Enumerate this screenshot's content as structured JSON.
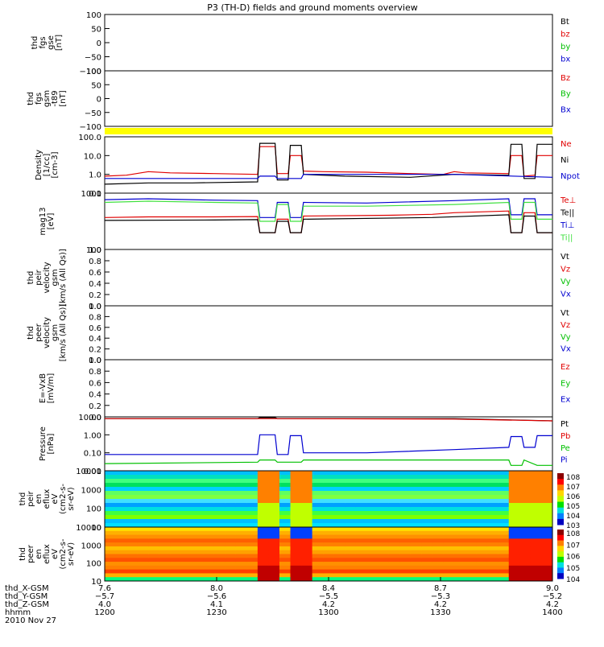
{
  "title": "P3 (TH-D) fields and ground moments overview",
  "colors": {
    "black": "#000000",
    "red": "#e00000",
    "green": "#00c000",
    "blue": "#0000d0",
    "yellow": "#ffff00",
    "lightgreen": "#40e040"
  },
  "panels": [
    {
      "id": "fgs-gse",
      "ylabel_lines": [
        "thd",
        "fgs",
        "gse",
        "[nT]"
      ],
      "yticks": [
        "100",
        "50",
        "0",
        "−50",
        "−100"
      ],
      "legend": [
        {
          "label": "Bt",
          "color": "black"
        },
        {
          "label": "bz",
          "color": "red"
        },
        {
          "label": "by",
          "color": "green"
        },
        {
          "label": "bx",
          "color": "blue"
        }
      ]
    },
    {
      "id": "fgs-gsm",
      "ylabel_lines": [
        "thd",
        "fgs",
        "gsm",
        "-t89",
        "[nT]"
      ],
      "yticks": [
        "100",
        "50",
        "0",
        "−50",
        "−100"
      ],
      "legend": [
        {
          "label": "Bz",
          "color": "red"
        },
        {
          "label": "By",
          "color": "green"
        },
        {
          "label": "Bx",
          "color": "blue"
        }
      ]
    },
    {
      "id": "density",
      "ylabel_lines": [
        "Density",
        "[1/cc]",
        "[cm-3]"
      ],
      "yticks": [
        "100.0",
        "10.0",
        "1.0",
        "0.1"
      ],
      "legend": [
        {
          "label": "Ne",
          "color": "red"
        },
        {
          "label": "Ni",
          "color": "black"
        },
        {
          "label": "Npot",
          "color": "blue"
        }
      ]
    },
    {
      "id": "temperature",
      "ylabel_lines": [
        "mag13",
        "[eV]"
      ],
      "yticks": [
        "1000",
        "100"
      ],
      "legend": [
        {
          "label": "Te⊥",
          "color": "red"
        },
        {
          "label": "Te||",
          "color": "black"
        },
        {
          "label": "Ti⊥",
          "color": "blue"
        },
        {
          "label": "Ti||",
          "color": "lightgreen"
        }
      ]
    },
    {
      "id": "peir-velocity",
      "ylabel_lines": [
        "thd",
        "peir",
        "velocity",
        "gsm",
        "[km/s (All Qs)]"
      ],
      "yticks": [
        "1.0",
        "0.8",
        "0.6",
        "0.4",
        "0.2",
        "0.0"
      ],
      "legend": [
        {
          "label": "Vt",
          "color": "black"
        },
        {
          "label": "Vz",
          "color": "red"
        },
        {
          "label": "Vy",
          "color": "green"
        },
        {
          "label": "Vx",
          "color": "blue"
        }
      ]
    },
    {
      "id": "peer-velocity",
      "ylabel_lines": [
        "thd",
        "peer",
        "velocity",
        "gsm",
        "[km/s (All Qs)]"
      ],
      "yticks": [
        "1.0",
        "0.8",
        "0.6",
        "0.4",
        "0.2",
        "0.0"
      ],
      "legend": [
        {
          "label": "Vt",
          "color": "black"
        },
        {
          "label": "Vz",
          "color": "red"
        },
        {
          "label": "Vy",
          "color": "green"
        },
        {
          "label": "Vx",
          "color": "blue"
        }
      ]
    },
    {
      "id": "efield",
      "ylabel_lines": [
        "E=-VxB",
        "[mV/m]"
      ],
      "yticks": [
        "1.0",
        "0.8",
        "0.6",
        "0.4",
        "0.2",
        "0.0"
      ],
      "legend": [
        {
          "label": "Ez",
          "color": "red"
        },
        {
          "label": "Ey",
          "color": "green"
        },
        {
          "label": "Ex",
          "color": "blue"
        }
      ]
    },
    {
      "id": "pressure",
      "ylabel_lines": [
        "Pressure",
        "[nPa]"
      ],
      "yticks": [
        "10.00",
        "1.00",
        "0.10",
        "0.01"
      ],
      "legend": [
        {
          "label": "Pt",
          "color": "black"
        },
        {
          "label": "Pb",
          "color": "red"
        },
        {
          "label": "Pe",
          "color": "green"
        },
        {
          "label": "Pi",
          "color": "blue"
        }
      ]
    },
    {
      "id": "peir-spec",
      "ylabel_lines": [
        "thd",
        "peir",
        "en",
        "eflux",
        "eV",
        "(cm2-s-",
        "sr-eV)"
      ],
      "yticks": [
        "10000",
        "1000",
        "100",
        "10"
      ],
      "colorbar_ticks": [
        "10^8",
        "10^7",
        "10^6",
        "10^5",
        "10^4",
        "10^3"
      ]
    },
    {
      "id": "peer-spec",
      "ylabel_lines": [
        "thd",
        "peer",
        "en",
        "eflux",
        "eV",
        "(cm2-s-",
        "sr-eV)"
      ],
      "yticks": [
        "10000",
        "1000",
        "100",
        "10"
      ],
      "colorbar_ticks": [
        "10^8",
        "10^7",
        "10^6",
        "10^5",
        "10^4"
      ]
    }
  ],
  "xaxis": {
    "row_labels": [
      "thd_X-GSM",
      "thd_Y-GSM",
      "thd_Z-GSM",
      "hhmm",
      "2010 Nov 27"
    ],
    "ticks": [
      {
        "x": "7.6",
        "y": "−5.7",
        "z": "4.0",
        "time": "1200"
      },
      {
        "x": "8.0",
        "y": "−5.6",
        "z": "4.1",
        "time": "1230"
      },
      {
        "x": "8.4",
        "y": "−5.5",
        "z": "4.2",
        "time": "1300"
      },
      {
        "x": "8.7",
        "y": "−5.3",
        "z": "4.2",
        "time": "1330"
      },
      {
        "x": "9.0",
        "y": "−5.2",
        "z": "4.2",
        "time": "1400"
      }
    ]
  },
  "chart_data": {
    "type": "line",
    "title": "P3 (TH-D) fields and ground moments overview",
    "x_unit": "time (hhmm)",
    "xlim": [
      "1200",
      "1400"
    ],
    "series": [
      {
        "panel": "density",
        "name": "Ne",
        "ylog": true,
        "ylim": [
          0.1,
          100
        ],
        "points": [
          [
            0,
            0.8
          ],
          [
            10,
            0.9
          ],
          [
            20,
            1.4
          ],
          [
            30,
            1.2
          ],
          [
            50,
            1.1
          ],
          [
            70,
            1.0
          ],
          [
            71,
            30
          ],
          [
            78,
            30
          ],
          [
            79,
            1.1
          ],
          [
            84,
            1.1
          ],
          [
            85,
            10
          ],
          [
            90,
            10
          ],
          [
            91,
            1.5
          ],
          [
            100,
            1.4
          ],
          [
            120,
            1.3
          ],
          [
            140,
            1.1
          ],
          [
            155,
            1.0
          ],
          [
            160,
            1.4
          ],
          [
            165,
            1.2
          ],
          [
            185,
            1.1
          ],
          [
            186,
            10
          ],
          [
            191,
            10
          ],
          [
            192,
            0.8
          ],
          [
            197,
            0.9
          ],
          [
            198,
            10
          ],
          [
            205,
            10
          ]
        ]
      },
      {
        "panel": "density",
        "name": "Ni",
        "ylog": true,
        "ylim": [
          0.1,
          100
        ],
        "points": [
          [
            0,
            0.3
          ],
          [
            20,
            0.35
          ],
          [
            40,
            0.35
          ],
          [
            70,
            0.4
          ],
          [
            71,
            45
          ],
          [
            78,
            45
          ],
          [
            79,
            0.5
          ],
          [
            84,
            0.5
          ],
          [
            85,
            35
          ],
          [
            90,
            35
          ],
          [
            91,
            1.0
          ],
          [
            110,
            0.8
          ],
          [
            140,
            0.7
          ],
          [
            160,
            1.0
          ],
          [
            185,
            0.9
          ],
          [
            186,
            40
          ],
          [
            191,
            40
          ],
          [
            192,
            0.6
          ],
          [
            197,
            0.6
          ],
          [
            198,
            40
          ],
          [
            205,
            40
          ]
        ]
      },
      {
        "panel": "density",
        "name": "Npot",
        "ylog": true,
        "ylim": [
          0.1,
          100
        ],
        "points": [
          [
            0,
            0.6
          ],
          [
            40,
            0.6
          ],
          [
            70,
            0.6
          ],
          [
            71,
            0.8
          ],
          [
            78,
            0.8
          ],
          [
            79,
            0.6
          ],
          [
            90,
            0.6
          ],
          [
            91,
            1.0
          ],
          [
            120,
            1.0
          ],
          [
            160,
            1.0
          ],
          [
            205,
            0.7
          ]
        ]
      },
      {
        "panel": "temperature",
        "name": "Te⊥",
        "ylog": true,
        "ylim": [
          10,
          4000
        ],
        "points": [
          [
            0,
            300
          ],
          [
            20,
            320
          ],
          [
            50,
            320
          ],
          [
            70,
            330
          ],
          [
            71,
            60
          ],
          [
            78,
            60
          ],
          [
            79,
            250
          ],
          [
            84,
            250
          ],
          [
            85,
            60
          ],
          [
            90,
            60
          ],
          [
            91,
            350
          ],
          [
            130,
            380
          ],
          [
            150,
            420
          ],
          [
            160,
            500
          ],
          [
            185,
            600
          ],
          [
            186,
            60
          ],
          [
            191,
            60
          ],
          [
            192,
            500
          ],
          [
            197,
            500
          ],
          [
            198,
            60
          ],
          [
            205,
            60
          ]
        ]
      },
      {
        "panel": "temperature",
        "name": "Te||",
        "ylog": true,
        "ylim": [
          10,
          4000
        ],
        "points": [
          [
            0,
            220
          ],
          [
            50,
            230
          ],
          [
            70,
            240
          ],
          [
            71,
            60
          ],
          [
            78,
            60
          ],
          [
            79,
            200
          ],
          [
            84,
            200
          ],
          [
            85,
            60
          ],
          [
            90,
            60
          ],
          [
            91,
            250
          ],
          [
            150,
            300
          ],
          [
            185,
            400
          ],
          [
            186,
            60
          ],
          [
            191,
            60
          ],
          [
            192,
            350
          ],
          [
            197,
            350
          ],
          [
            198,
            60
          ],
          [
            205,
            60
          ]
        ]
      },
      {
        "panel": "temperature",
        "name": "Ti⊥",
        "ylog": true,
        "ylim": [
          10,
          4000
        ],
        "points": [
          [
            0,
            2000
          ],
          [
            20,
            2200
          ],
          [
            50,
            1900
          ],
          [
            70,
            1800
          ],
          [
            71,
            300
          ],
          [
            78,
            300
          ],
          [
            79,
            1500
          ],
          [
            84,
            1500
          ],
          [
            85,
            300
          ],
          [
            90,
            300
          ],
          [
            91,
            1500
          ],
          [
            120,
            1400
          ],
          [
            160,
            1800
          ],
          [
            185,
            2200
          ],
          [
            186,
            400
          ],
          [
            191,
            400
          ],
          [
            192,
            2200
          ],
          [
            197,
            2200
          ],
          [
            198,
            400
          ],
          [
            205,
            400
          ]
        ]
      },
      {
        "panel": "temperature",
        "name": "Ti||",
        "ylog": true,
        "ylim": [
          10,
          4000
        ],
        "points": [
          [
            0,
            1500
          ],
          [
            20,
            1700
          ],
          [
            50,
            1500
          ],
          [
            70,
            1400
          ],
          [
            71,
            200
          ],
          [
            78,
            200
          ],
          [
            79,
            1200
          ],
          [
            84,
            1200
          ],
          [
            85,
            200
          ],
          [
            90,
            200
          ],
          [
            91,
            1000
          ],
          [
            120,
            1000
          ],
          [
            160,
            1200
          ],
          [
            185,
            1500
          ],
          [
            186,
            250
          ],
          [
            191,
            250
          ],
          [
            192,
            1500
          ],
          [
            197,
            1500
          ],
          [
            198,
            250
          ],
          [
            205,
            250
          ]
        ]
      },
      {
        "panel": "pressure",
        "name": "Pt",
        "ylog": true,
        "ylim": [
          0.01,
          10
        ],
        "points": [
          [
            0,
            8
          ],
          [
            70,
            8
          ],
          [
            71,
            9
          ],
          [
            78,
            9
          ],
          [
            79,
            8
          ],
          [
            160,
            8
          ],
          [
            205,
            6
          ]
        ]
      },
      {
        "panel": "pressure",
        "name": "Pb",
        "ylog": true,
        "ylim": [
          0.01,
          10
        ],
        "points": [
          [
            0,
            8
          ],
          [
            70,
            8
          ],
          [
            78,
            8
          ],
          [
            160,
            7.5
          ],
          [
            205,
            6
          ]
        ]
      },
      {
        "panel": "pressure",
        "name": "Pe",
        "ylog": true,
        "ylim": [
          0.01,
          10
        ],
        "points": [
          [
            0,
            0.025
          ],
          [
            70,
            0.03
          ],
          [
            71,
            0.04
          ],
          [
            78,
            0.04
          ],
          [
            79,
            0.03
          ],
          [
            84,
            0.03
          ],
          [
            85,
            0.03
          ],
          [
            90,
            0.03
          ],
          [
            91,
            0.04
          ],
          [
            160,
            0.04
          ],
          [
            185,
            0.04
          ],
          [
            186,
            0.02
          ],
          [
            191,
            0.02
          ],
          [
            192,
            0.04
          ],
          [
            198,
            0.02
          ],
          [
            205,
            0.02
          ]
        ]
      },
      {
        "panel": "pressure",
        "name": "Pi",
        "ylog": true,
        "ylim": [
          0.01,
          10
        ],
        "points": [
          [
            0,
            0.08
          ],
          [
            40,
            0.08
          ],
          [
            70,
            0.08
          ],
          [
            71,
            1.0
          ],
          [
            78,
            1.0
          ],
          [
            79,
            0.08
          ],
          [
            84,
            0.08
          ],
          [
            85,
            0.9
          ],
          [
            90,
            0.9
          ],
          [
            91,
            0.1
          ],
          [
            120,
            0.1
          ],
          [
            160,
            0.15
          ],
          [
            185,
            0.2
          ],
          [
            186,
            0.8
          ],
          [
            191,
            0.8
          ],
          [
            192,
            0.2
          ],
          [
            197,
            0.2
          ],
          [
            198,
            0.9
          ],
          [
            205,
            0.9
          ]
        ]
      }
    ],
    "spectrograms": [
      {
        "panel": "peir-spec",
        "ylog": true,
        "ylim": [
          7,
          20000
        ],
        "note_events": [
          [
            71,
            78
          ],
          [
            85,
            91
          ],
          [
            186,
            191
          ],
          [
            198,
            205
          ]
        ]
      },
      {
        "panel": "peer-spec",
        "ylog": true,
        "ylim": [
          7,
          20000
        ],
        "note_events": [
          [
            71,
            78
          ],
          [
            85,
            91
          ],
          [
            186,
            191
          ],
          [
            198,
            205
          ]
        ]
      }
    ]
  }
}
